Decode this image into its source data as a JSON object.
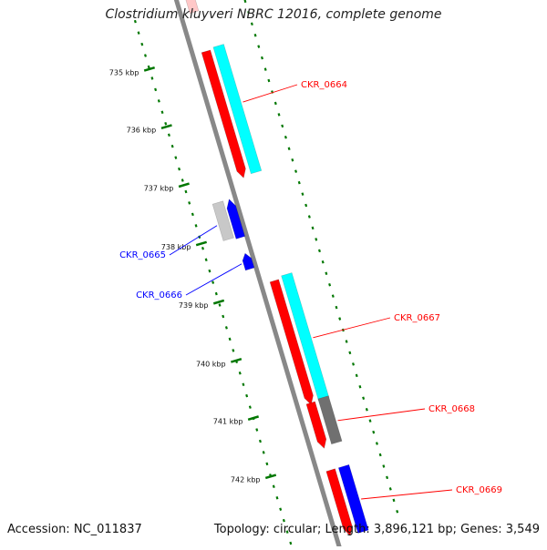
{
  "title": "Clostridium kluyveri NBRC 12016, complete genome",
  "footer": {
    "accession": "Accession: NC_011837",
    "summary": "Topology: circular; Length: 3,896,121 bp; Genes: 3,549"
  },
  "colors": {
    "forward_cds": "#ff0000",
    "forward_feature": "#00ffff",
    "reverse_cds": "#0000ff",
    "reverse_feature": "#c8c8c8",
    "other_feature": "#707070",
    "backbone": "#888888",
    "tick": "#007700"
  },
  "ticks": [
    "735 kbp",
    "736 kbp",
    "737 kbp",
    "738 kbp",
    "739 kbp",
    "740 kbp",
    "741 kbp",
    "742 kbp"
  ],
  "genes": [
    {
      "name": "CKR_0664",
      "strand": "forward",
      "color": "#ff0000"
    },
    {
      "name": "CKR_0665",
      "strand": "reverse",
      "color": "#0000ff"
    },
    {
      "name": "CKR_0666",
      "strand": "reverse",
      "color": "#0000ff"
    },
    {
      "name": "CKR_0667",
      "strand": "forward",
      "color": "#ff0000"
    },
    {
      "name": "CKR_0668",
      "strand": "forward",
      "color": "#ff0000"
    },
    {
      "name": "CKR_0669",
      "strand": "forward",
      "color": "#ff0000"
    }
  ]
}
